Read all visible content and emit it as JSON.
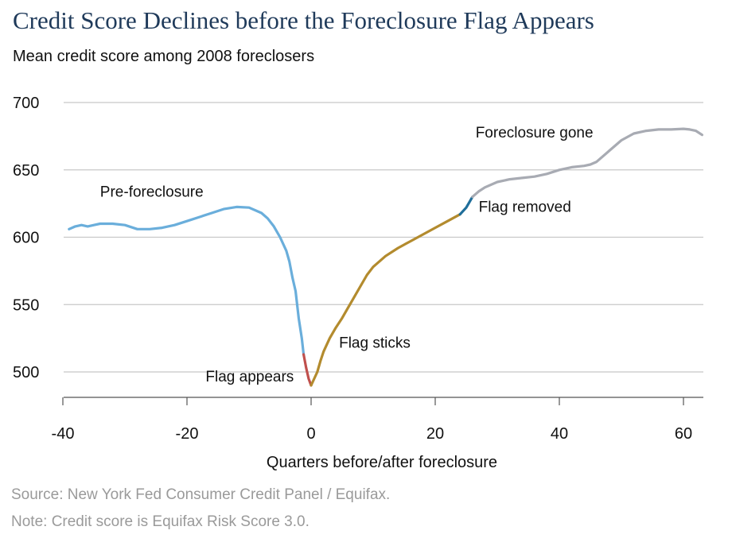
{
  "title": "Credit Score Declines before the Foreclosure Flag Appears",
  "subtitle": "Mean credit score among 2008 foreclosers",
  "source": "Source: New York Fed Consumer Credit Panel / Equifax.",
  "note": "Note: Credit score is Equifax Risk Score 3.0.",
  "chart_data": {
    "type": "line",
    "title": "Credit Score Declines before the Foreclosure Flag Appears",
    "subtitle": "Mean credit score among 2008 foreclosers",
    "xlabel": "Quarters before/after foreclosure",
    "ylabel": "",
    "xlim": [
      -40,
      63
    ],
    "ylim": [
      488,
      700
    ],
    "x_ticks": [
      -40,
      -20,
      0,
      20,
      40,
      60
    ],
    "y_ticks": [
      500,
      550,
      600,
      650,
      700
    ],
    "x_tick_labels": [
      "-40",
      "-20",
      "0",
      "20",
      "40",
      "60"
    ],
    "y_tick_labels": [
      "500",
      "550",
      "600",
      "650",
      "700"
    ],
    "grid": "horizontal",
    "series": [
      {
        "name": "Pre-foreclosure",
        "color": "#6aaedb",
        "x": [
          -39,
          -38,
          -37,
          -36,
          -35,
          -34,
          -32,
          -30,
          -28,
          -26,
          -24,
          -22,
          -20,
          -18,
          -16,
          -14,
          -12,
          -10,
          -8,
          -7,
          -6,
          -5,
          -4,
          -3.5,
          -3,
          -2.5,
          -2,
          -1.5,
          -1.2
        ],
        "y": [
          606,
          608,
          609,
          608,
          609,
          610,
          610,
          609,
          606,
          606,
          607,
          609,
          612,
          615,
          618,
          621,
          622.5,
          622,
          618,
          614,
          608,
          600,
          590,
          582,
          570,
          560,
          540,
          525,
          513
        ]
      },
      {
        "name": "Flag appears",
        "color": "#c0504d",
        "x": [
          -1.2,
          -0.8,
          -0.4,
          0
        ],
        "y": [
          513,
          503,
          495,
          490
        ]
      },
      {
        "name": "Flag sticks",
        "color": "#b38b2e",
        "x": [
          0,
          0.5,
          1,
          1.5,
          2,
          3,
          4,
          5,
          6,
          7,
          8,
          9,
          10,
          12,
          14,
          16,
          18,
          20,
          22,
          24
        ],
        "y": [
          490,
          495,
          500,
          508,
          515,
          525,
          533,
          540,
          548,
          556,
          564,
          572,
          578,
          586,
          592,
          597,
          602,
          607,
          612,
          617
        ]
      },
      {
        "name": "Flag removed",
        "color": "#1f6e9a",
        "x": [
          24,
          25,
          26
        ],
        "y": [
          617,
          622,
          630
        ]
      },
      {
        "name": "Foreclosure gone",
        "color": "#a8abb3",
        "x": [
          26,
          27,
          28,
          30,
          32,
          34,
          36,
          38,
          40,
          42,
          44,
          45,
          46,
          48,
          50,
          52,
          54,
          56,
          58,
          60,
          61,
          62,
          63
        ],
        "y": [
          630,
          634,
          637,
          641,
          643,
          644,
          645,
          647,
          650,
          652,
          653,
          654,
          656,
          664,
          672,
          677,
          679,
          680,
          680,
          680.5,
          680,
          679,
          676
        ]
      }
    ],
    "annotations": [
      {
        "text": "Pre-foreclosure",
        "x": -34,
        "y": 630
      },
      {
        "text": "Flag appears",
        "x": -17,
        "y": 493
      },
      {
        "text": "Flag sticks",
        "x": 4.5,
        "y": 518
      },
      {
        "text": "Flag removed",
        "x": 27,
        "y": 619
      },
      {
        "text": "Foreclosure gone",
        "x": 26.5,
        "y": 674
      }
    ]
  }
}
